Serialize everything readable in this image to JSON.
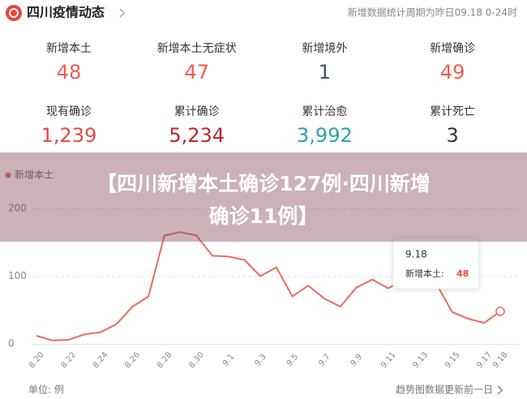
{
  "header": {
    "title": "四川疫情动态",
    "note": "新增数据统计周期为昨日09.18 0-24时"
  },
  "stats": [
    {
      "label": "新增本土",
      "value": "48",
      "color": "#ef5b52"
    },
    {
      "label": "新增本土无症状",
      "value": "47",
      "color": "#ef5b52"
    },
    {
      "label": "新增境外",
      "value": "1",
      "color": "#3d4d6e"
    },
    {
      "label": "新增确诊",
      "value": "49",
      "color": "#ef5b52"
    },
    {
      "label": "现有确诊",
      "value": "1,239",
      "color": "#e34a43"
    },
    {
      "label": "累计确诊",
      "value": "5,234",
      "color": "#bf252b"
    },
    {
      "label": "累计治愈",
      "value": "3,992",
      "color": "#2aa3a8"
    },
    {
      "label": "累计死亡",
      "value": "3",
      "color": "#333333"
    }
  ],
  "banner": {
    "lines": [
      "【四川新增本土确诊127例·四川新增",
      "确诊11例】"
    ]
  },
  "chart_data": {
    "type": "line",
    "categories": [
      "8.20",
      null,
      "8.22",
      null,
      "8.24",
      null,
      "8.26",
      null,
      "8.28",
      null,
      "8.30",
      null,
      "9.1",
      null,
      "9.3",
      null,
      "9.5",
      null,
      "9.7",
      null,
      "9.9",
      null,
      "9.11",
      null,
      "9.13",
      null,
      "9.15",
      null,
      "9.17",
      "9.18"
    ],
    "series": [
      {
        "name": "新增本土",
        "color": "#ef6a60",
        "values": [
          12,
          5,
          6,
          14,
          17,
          29,
          55,
          70,
          160,
          165,
          160,
          130,
          129,
          124,
          100,
          113,
          70,
          86,
          67,
          55,
          83,
          95,
          82,
          95,
          107,
          89,
          47,
          37,
          31,
          48
        ]
      }
    ],
    "ylim": [
      0,
      200
    ],
    "yticks": [
      0,
      100,
      200
    ],
    "grid": true,
    "tooltip": {
      "date": "9.18",
      "label": "新增本土:",
      "value": "48"
    }
  },
  "footer": {
    "unit": "单位: 例",
    "link": "趋势图数据更新前一日"
  }
}
